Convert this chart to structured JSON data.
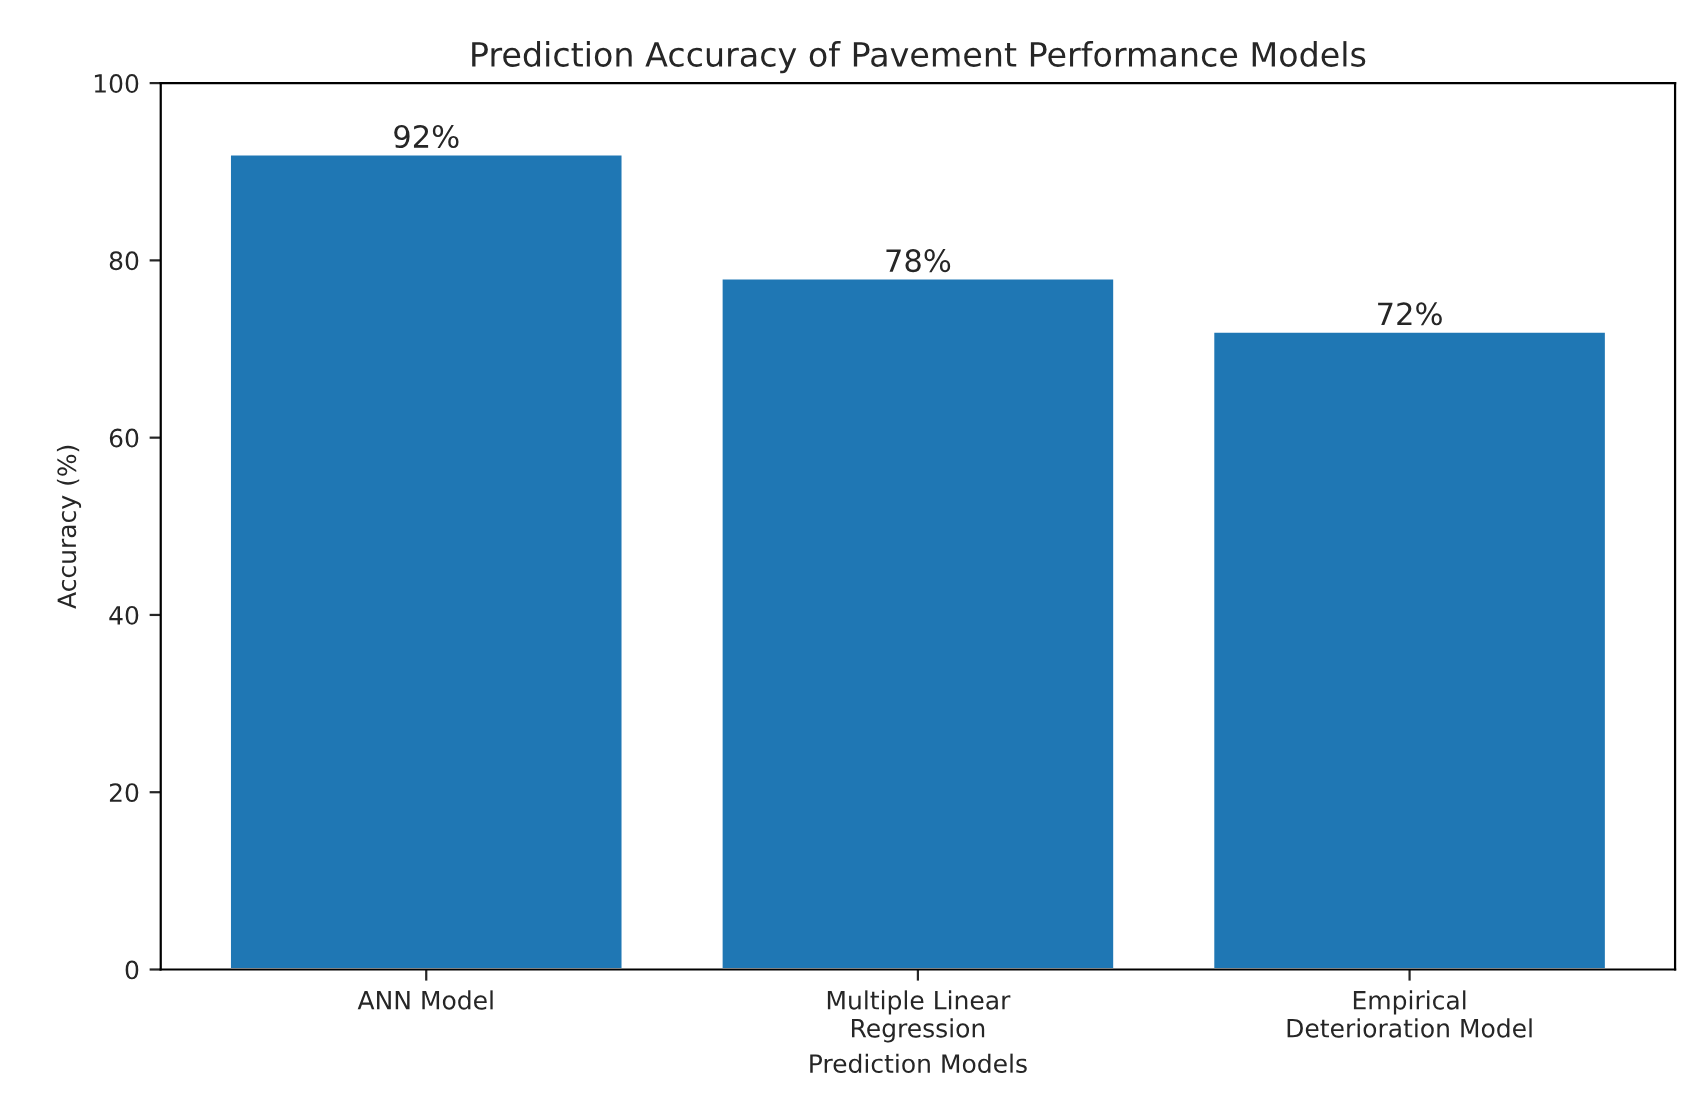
{
  "chart_data": {
    "type": "bar",
    "title": "Prediction Accuracy of Pavement Performance Models",
    "xlabel": "Prediction Models",
    "ylabel": "Accuracy (%)",
    "categories": [
      "ANN Model",
      "Multiple Linear\nRegression",
      "Empirical\nDeterioration Model"
    ],
    "values": [
      92,
      78,
      72
    ],
    "value_labels": [
      "92%",
      "78%",
      "72%"
    ],
    "color": "#1f77b4",
    "ylim": [
      0,
      100
    ],
    "yticks": [
      0,
      20,
      40,
      60,
      80,
      100
    ],
    "grid": false
  }
}
